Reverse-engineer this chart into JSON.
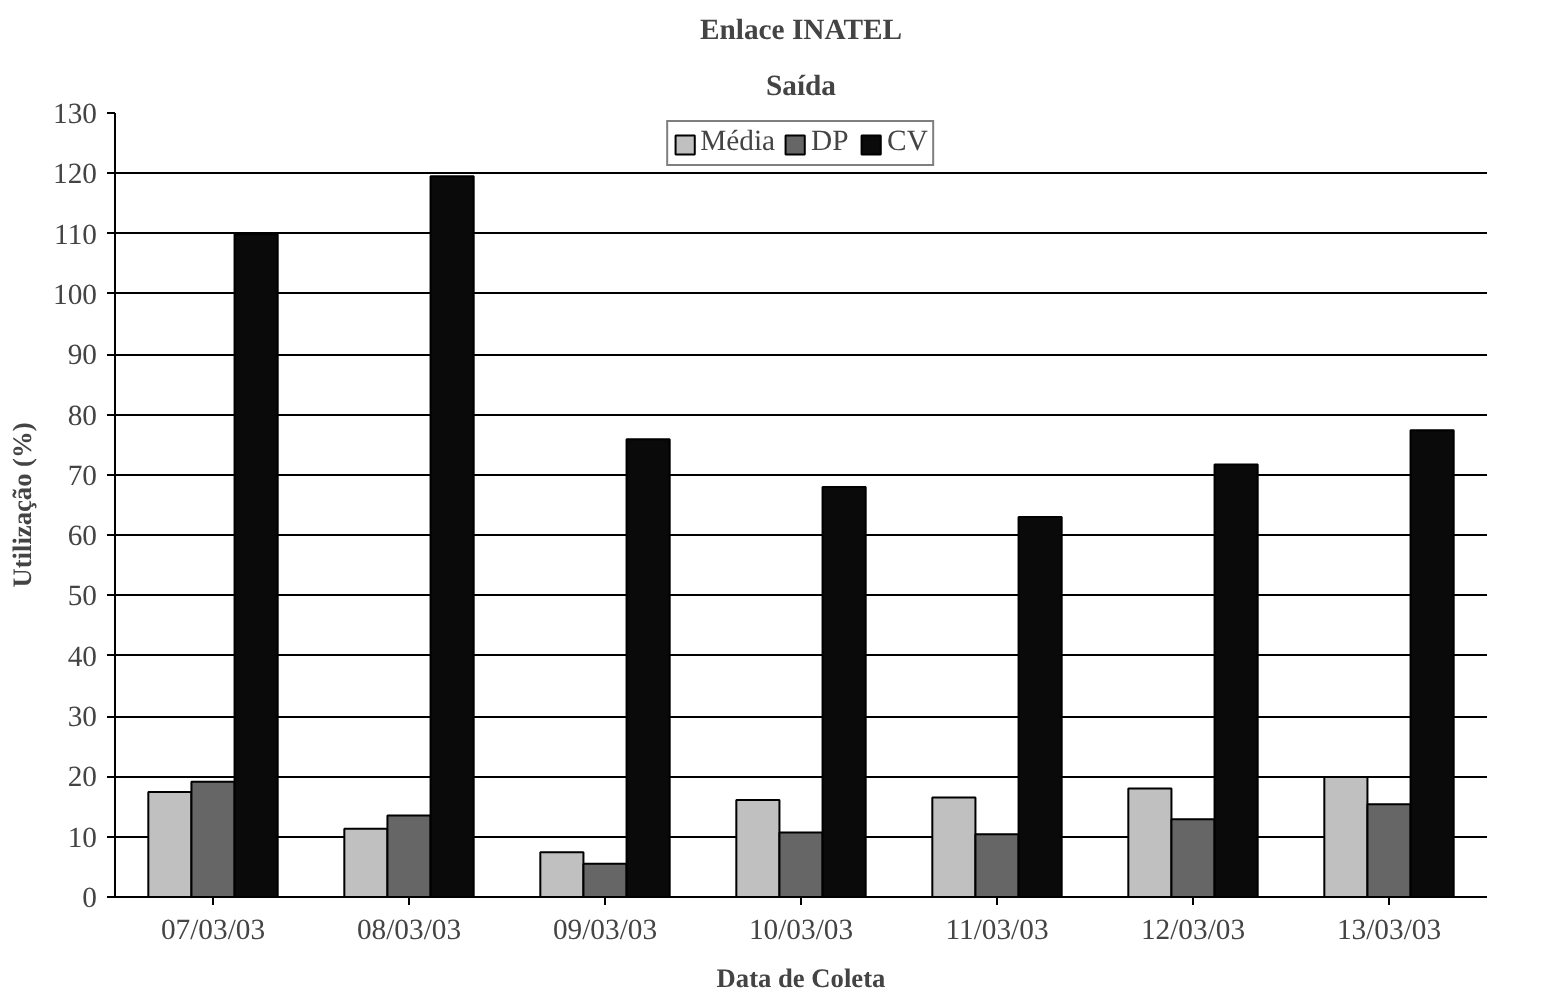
{
  "chart_data": {
    "type": "bar",
    "title": "Enlace INATEL",
    "subtitle": "Saída",
    "xlabel": "Data de Coleta",
    "ylabel": "Utilização (%)",
    "categories": [
      "07/03/03",
      "08/03/03",
      "09/03/03",
      "10/03/03",
      "11/03/03",
      "12/03/03",
      "13/03/03"
    ],
    "series": [
      {
        "name": "Média",
        "color": "#c0c0c0",
        "values": [
          17.4,
          11.3,
          7.4,
          16.1,
          16.5,
          18.0,
          19.9
        ]
      },
      {
        "name": "DP",
        "color": "#666666",
        "values": [
          19.1,
          13.5,
          5.5,
          10.7,
          10.4,
          12.9,
          15.4
        ]
      },
      {
        "name": "CV",
        "color": "#0a0a0a",
        "values": [
          109.9,
          119.5,
          75.9,
          68.0,
          63.0,
          71.7,
          77.4
        ]
      }
    ],
    "ylim": [
      0,
      130
    ],
    "yticks": [
      0,
      10,
      20,
      30,
      40,
      50,
      60,
      70,
      80,
      90,
      100,
      110,
      120,
      130
    ],
    "grid": "y",
    "legend": "top"
  }
}
